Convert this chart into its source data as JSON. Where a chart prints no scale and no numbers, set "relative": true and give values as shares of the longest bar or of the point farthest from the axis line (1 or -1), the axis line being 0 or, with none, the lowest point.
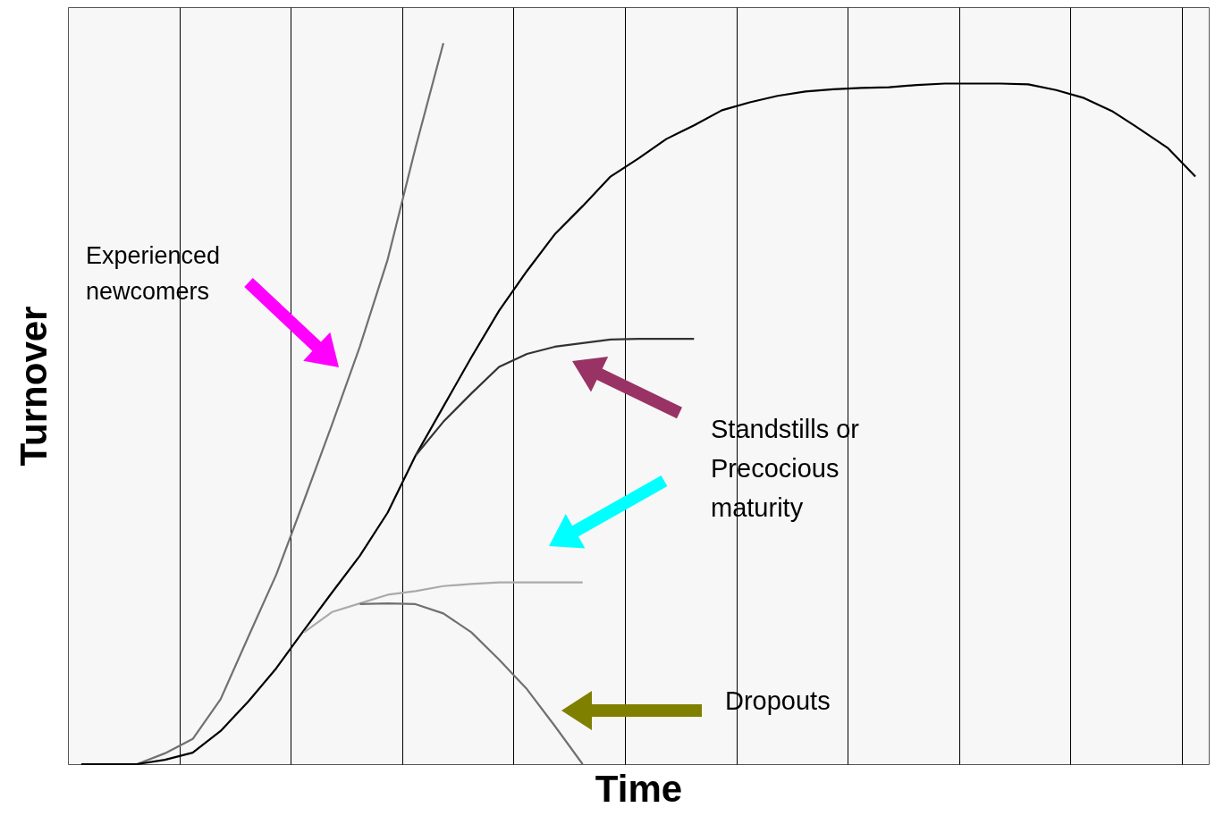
{
  "chart_data": {
    "type": "line",
    "relative": true,
    "xlabel": "Time",
    "ylabel": "Turnover",
    "categories": [
      null,
      null,
      null,
      null,
      null,
      null,
      null,
      null,
      null,
      null,
      null,
      null,
      null,
      null,
      null,
      null,
      null,
      null,
      null,
      null,
      null,
      null,
      null,
      null,
      null,
      null,
      null,
      null,
      null,
      null,
      null,
      null,
      null,
      null,
      null,
      null,
      null,
      null,
      null,
      null,
      null
    ],
    "grid": "x",
    "marker": "none",
    "line_style": "solid",
    "annotations": [
      "Experienced newcomers",
      "Standstills or Precocious maturity",
      "Dropouts"
    ],
    "series": [
      {
        "color": "#707070",
        "values": [
          0,
          0,
          0,
          0.015,
          0.035,
          0.09,
          0.177,
          0.263,
          0.366,
          0.471,
          0.579,
          0.7,
          0.855,
          1,
          null,
          null,
          null,
          null,
          null,
          null,
          null,
          null,
          null,
          null,
          null,
          null,
          null,
          null,
          null,
          null,
          null,
          null,
          null,
          null,
          null,
          null,
          null,
          null,
          null,
          null,
          null
        ]
      },
      {
        "color": "#000000",
        "values": [
          0,
          0,
          0,
          0.006,
          0.016,
          0.046,
          0.087,
          0.133,
          0.186,
          0.238,
          0.289,
          0.349,
          0.428,
          0.496,
          0.564,
          0.629,
          0.684,
          0.735,
          0.774,
          0.815,
          0.84,
          0.867,
          0.886,
          0.907,
          0.918,
          0.927,
          0.933,
          0.936,
          0.938,
          0.939,
          0.942,
          0.944,
          0.944,
          0.944,
          0.943,
          0.935,
          0.924,
          0.906,
          0.881,
          0.855,
          0.815
        ]
      },
      {
        "color": "#333333",
        "values": [
          null,
          null,
          null,
          null,
          null,
          null,
          null,
          null,
          null,
          null,
          null,
          null,
          0.428,
          0.475,
          0.514,
          0.551,
          0.569,
          0.579,
          0.584,
          0.589,
          0.59,
          0.59,
          0.59,
          null,
          null,
          null,
          null,
          null,
          null,
          null,
          null,
          null,
          null,
          null,
          null,
          null,
          null,
          null,
          null,
          null,
          null
        ]
      },
      {
        "color": "#aaaaaa",
        "values": [
          null,
          null,
          null,
          null,
          null,
          null,
          null,
          null,
          0.183,
          0.211,
          0.223,
          0.235,
          0.24,
          0.247,
          0.25,
          0.252,
          0.252,
          0.252,
          0.252,
          null,
          null,
          null,
          null,
          null,
          null,
          null,
          null,
          null,
          null,
          null,
          null,
          null,
          null,
          null,
          null,
          null,
          null,
          null,
          null,
          null,
          null
        ]
      },
      {
        "color": "#707070",
        "values": [
          null,
          null,
          null,
          null,
          null,
          null,
          null,
          null,
          null,
          null,
          0.222,
          0.223,
          0.222,
          0.209,
          0.183,
          0.145,
          0.104,
          0.053,
          0,
          null,
          null,
          null,
          null,
          null,
          null,
          null,
          null,
          null,
          null,
          null,
          null,
          null,
          null,
          null,
          null,
          null,
          null,
          null,
          null,
          null,
          null
        ]
      }
    ]
  }
}
